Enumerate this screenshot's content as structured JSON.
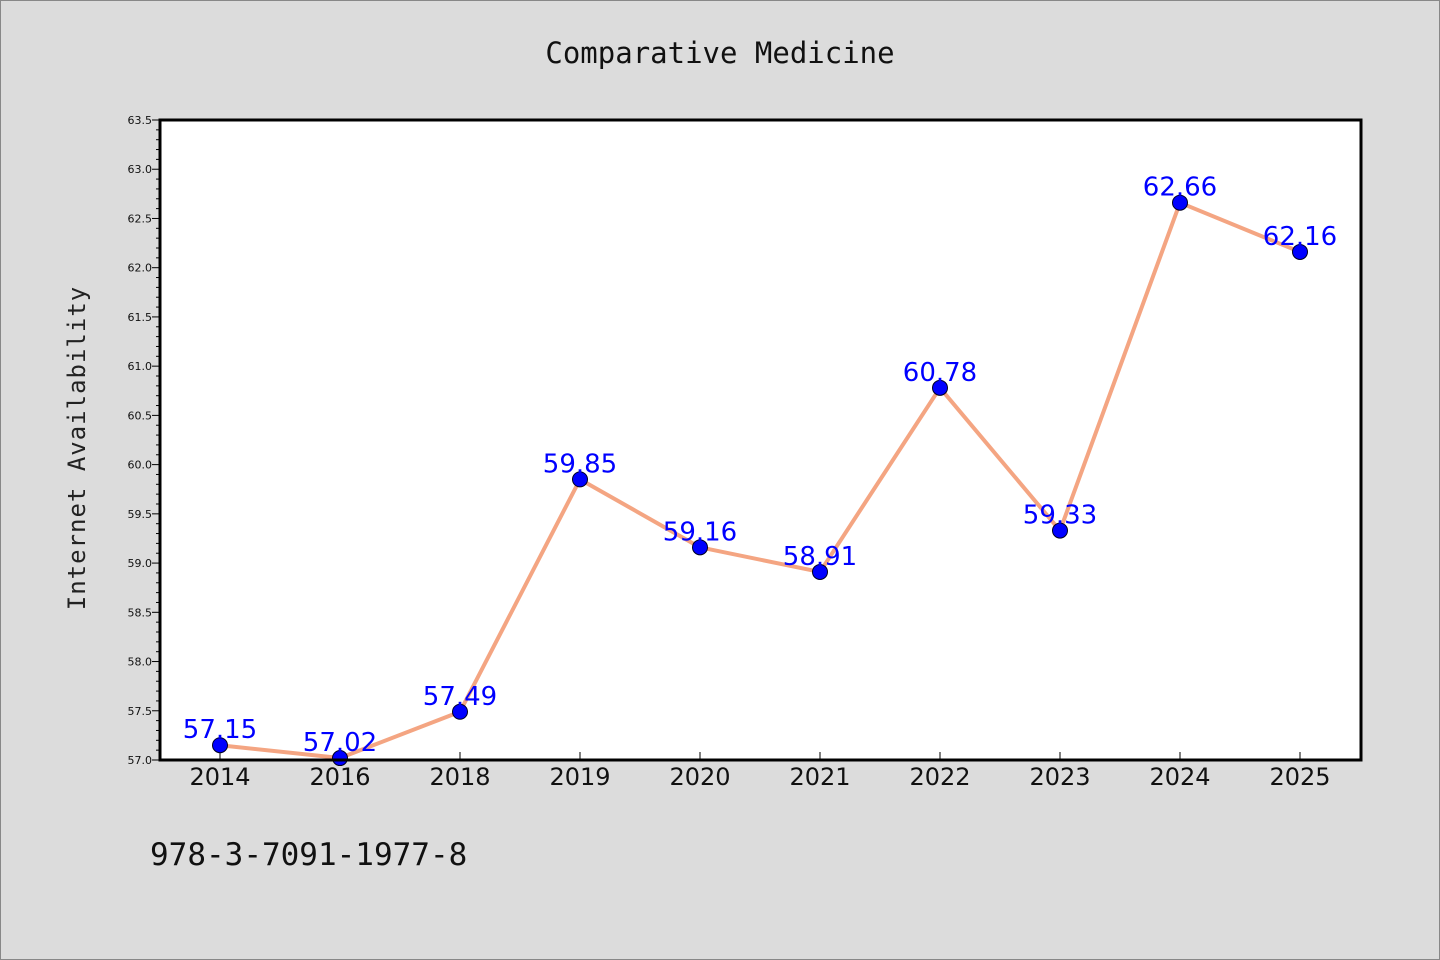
{
  "chart_data": {
    "type": "line",
    "title": "Comparative Medicine",
    "ylabel": "Internet Availability",
    "xlabel": "",
    "categories": [
      "2014",
      "2016",
      "2018",
      "2019",
      "2020",
      "2021",
      "2022",
      "2023",
      "2024",
      "2025"
    ],
    "values": [
      57.15,
      57.02,
      57.49,
      59.85,
      59.16,
      58.91,
      60.78,
      59.33,
      62.66,
      62.16
    ],
    "data_labels": [
      "57.15",
      "57.02",
      "57.49",
      "59.85",
      "59.16",
      "58.91",
      "60.78",
      "59.33",
      "62.66",
      "62.16"
    ],
    "ylim": [
      57.0,
      63.5
    ],
    "yticks": [
      "57.0",
      "57.5",
      "58.0",
      "58.5",
      "59.0",
      "59.5",
      "60.0",
      "60.5",
      "61.0",
      "61.5",
      "62.0",
      "62.5",
      "63.0",
      "63.5"
    ],
    "grid": false,
    "line_color": "#f4a582",
    "marker_color": "#0000ff",
    "label_color": "#0000ff"
  },
  "footer": {
    "isbn": "978-3-7091-1977-8"
  }
}
